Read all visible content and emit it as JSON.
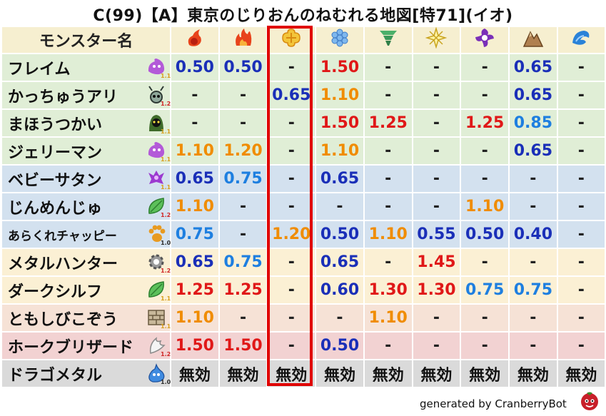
{
  "title": "C(99)【A】東京のじりおんのねむれる地図[特71](イオ)",
  "header": {
    "name_col": "モンスター名"
  },
  "elements": [
    {
      "icon": "fire-icon"
    },
    {
      "icon": "flame-icon"
    },
    {
      "icon": "wind-icon"
    },
    {
      "icon": "ice-icon"
    },
    {
      "icon": "tornado-icon"
    },
    {
      "icon": "light-icon"
    },
    {
      "icon": "dark-icon"
    },
    {
      "icon": "earth-icon"
    },
    {
      "icon": "water-icon"
    }
  ],
  "rows": [
    {
      "name": "フレイム",
      "level": "1.1",
      "icon": "purple-slime-icon",
      "bg": "#e0eed6",
      "small": false,
      "cells": [
        {
          "v": "0.50",
          "c": "blue"
        },
        {
          "v": "0.50",
          "c": "blue"
        },
        {
          "v": "-",
          "c": "dash"
        },
        {
          "v": "1.50",
          "c": "red"
        },
        {
          "v": "-",
          "c": "dash"
        },
        {
          "v": "-",
          "c": "dash"
        },
        {
          "v": "-",
          "c": "dash"
        },
        {
          "v": "0.65",
          "c": "blue"
        },
        {
          "v": "-",
          "c": "dash"
        }
      ]
    },
    {
      "name": "かっちゅうアリ",
      "level": "1.2",
      "icon": "ant-icon",
      "bg": "#e0eed6",
      "small": false,
      "cells": [
        {
          "v": "-",
          "c": "dash"
        },
        {
          "v": "-",
          "c": "dash"
        },
        {
          "v": "0.65",
          "c": "blue"
        },
        {
          "v": "1.10",
          "c": "orange"
        },
        {
          "v": "-",
          "c": "dash"
        },
        {
          "v": "-",
          "c": "dash"
        },
        {
          "v": "-",
          "c": "dash"
        },
        {
          "v": "0.65",
          "c": "blue"
        },
        {
          "v": "-",
          "c": "dash"
        }
      ]
    },
    {
      "name": "まほうつかい",
      "level": "1.1",
      "icon": "hooded-mage-icon",
      "bg": "#e0eed6",
      "small": false,
      "cells": [
        {
          "v": "-",
          "c": "dash"
        },
        {
          "v": "-",
          "c": "dash"
        },
        {
          "v": "-",
          "c": "dash"
        },
        {
          "v": "1.50",
          "c": "red"
        },
        {
          "v": "1.25",
          "c": "red"
        },
        {
          "v": "-",
          "c": "dash"
        },
        {
          "v": "1.25",
          "c": "red"
        },
        {
          "v": "0.85",
          "c": "lblue"
        },
        {
          "v": "-",
          "c": "dash"
        }
      ]
    },
    {
      "name": "ジェリーマン",
      "level": "1.1",
      "icon": "purple-slime-icon",
      "bg": "#e0eed6",
      "small": false,
      "cells": [
        {
          "v": "1.10",
          "c": "orange"
        },
        {
          "v": "1.20",
          "c": "orange"
        },
        {
          "v": "-",
          "c": "dash"
        },
        {
          "v": "1.10",
          "c": "orange"
        },
        {
          "v": "-",
          "c": "dash"
        },
        {
          "v": "-",
          "c": "dash"
        },
        {
          "v": "-",
          "c": "dash"
        },
        {
          "v": "0.65",
          "c": "blue"
        },
        {
          "v": "-",
          "c": "dash"
        }
      ]
    },
    {
      "name": "ベビーサタン",
      "level": "1.1",
      "icon": "demon-icon",
      "bg": "#d3e1ef",
      "small": false,
      "cells": [
        {
          "v": "0.65",
          "c": "blue"
        },
        {
          "v": "0.75",
          "c": "lblue"
        },
        {
          "v": "-",
          "c": "dash"
        },
        {
          "v": "0.65",
          "c": "blue"
        },
        {
          "v": "-",
          "c": "dash"
        },
        {
          "v": "-",
          "c": "dash"
        },
        {
          "v": "-",
          "c": "dash"
        },
        {
          "v": "-",
          "c": "dash"
        },
        {
          "v": "-",
          "c": "dash"
        }
      ]
    },
    {
      "name": "じんめんじゅ",
      "level": "1.2",
      "icon": "leaf-icon",
      "bg": "#d3e1ef",
      "small": false,
      "cells": [
        {
          "v": "1.10",
          "c": "orange"
        },
        {
          "v": "-",
          "c": "dash"
        },
        {
          "v": "-",
          "c": "dash"
        },
        {
          "v": "-",
          "c": "dash"
        },
        {
          "v": "-",
          "c": "dash"
        },
        {
          "v": "-",
          "c": "dash"
        },
        {
          "v": "1.10",
          "c": "orange"
        },
        {
          "v": "-",
          "c": "dash"
        },
        {
          "v": "-",
          "c": "dash"
        }
      ]
    },
    {
      "name": "あらくれチャッピー",
      "level": "1.0",
      "icon": "paw-icon",
      "bg": "#d3e1ef",
      "small": true,
      "cells": [
        {
          "v": "0.75",
          "c": "lblue"
        },
        {
          "v": "-",
          "c": "dash"
        },
        {
          "v": "1.20",
          "c": "orange"
        },
        {
          "v": "0.50",
          "c": "blue"
        },
        {
          "v": "1.10",
          "c": "orange"
        },
        {
          "v": "0.55",
          "c": "blue"
        },
        {
          "v": "0.50",
          "c": "blue"
        },
        {
          "v": "0.40",
          "c": "blue"
        },
        {
          "v": "-",
          "c": "dash"
        }
      ]
    },
    {
      "name": "メタルハンター",
      "level": "1.2",
      "icon": "gear-icon",
      "bg": "#fbf0d4",
      "small": false,
      "cells": [
        {
          "v": "0.65",
          "c": "blue"
        },
        {
          "v": "0.75",
          "c": "lblue"
        },
        {
          "v": "-",
          "c": "dash"
        },
        {
          "v": "0.65",
          "c": "blue"
        },
        {
          "v": "-",
          "c": "dash"
        },
        {
          "v": "1.45",
          "c": "red"
        },
        {
          "v": "-",
          "c": "dash"
        },
        {
          "v": "-",
          "c": "dash"
        },
        {
          "v": "-",
          "c": "dash"
        }
      ]
    },
    {
      "name": "ダークシルフ",
      "level": "1.1",
      "icon": "leaf-icon",
      "bg": "#fbf0d4",
      "small": false,
      "cells": [
        {
          "v": "1.25",
          "c": "red"
        },
        {
          "v": "1.25",
          "c": "red"
        },
        {
          "v": "-",
          "c": "dash"
        },
        {
          "v": "0.60",
          "c": "blue"
        },
        {
          "v": "1.30",
          "c": "red"
        },
        {
          "v": "1.30",
          "c": "red"
        },
        {
          "v": "0.75",
          "c": "lblue"
        },
        {
          "v": "0.75",
          "c": "lblue"
        },
        {
          "v": "-",
          "c": "dash"
        }
      ]
    },
    {
      "name": "ともしびこぞう",
      "level": "1.1",
      "icon": "brick-icon",
      "bg": "#f6e2d6",
      "small": false,
      "cells": [
        {
          "v": "1.10",
          "c": "orange"
        },
        {
          "v": "-",
          "c": "dash"
        },
        {
          "v": "-",
          "c": "dash"
        },
        {
          "v": "-",
          "c": "dash"
        },
        {
          "v": "1.10",
          "c": "orange"
        },
        {
          "v": "-",
          "c": "dash"
        },
        {
          "v": "-",
          "c": "dash"
        },
        {
          "v": "-",
          "c": "dash"
        },
        {
          "v": "-",
          "c": "dash"
        }
      ]
    },
    {
      "name": "ホークブリザード",
      "level": "1.2",
      "icon": "wing-icon",
      "bg": "#f2d2d2",
      "small": false,
      "cells": [
        {
          "v": "1.50",
          "c": "red"
        },
        {
          "v": "1.50",
          "c": "red"
        },
        {
          "v": "-",
          "c": "dash"
        },
        {
          "v": "0.50",
          "c": "blue"
        },
        {
          "v": "-",
          "c": "dash"
        },
        {
          "v": "-",
          "c": "dash"
        },
        {
          "v": "-",
          "c": "dash"
        },
        {
          "v": "-",
          "c": "dash"
        },
        {
          "v": "-",
          "c": "dash"
        }
      ]
    },
    {
      "name": "ドラゴメタル",
      "level": "1.0",
      "icon": "metal-slime-icon",
      "bg": "#dadada",
      "small": false,
      "cells": [
        {
          "v": "無効",
          "c": "bk"
        },
        {
          "v": "無効",
          "c": "bk"
        },
        {
          "v": "無効",
          "c": "bk"
        },
        {
          "v": "無効",
          "c": "bk"
        },
        {
          "v": "無効",
          "c": "bk"
        },
        {
          "v": "無効",
          "c": "bk"
        },
        {
          "v": "無効",
          "c": "bk"
        },
        {
          "v": "無効",
          "c": "bk"
        },
        {
          "v": "無効",
          "c": "bk"
        }
      ]
    }
  ],
  "footer": {
    "text": "generated by CranberryBot"
  },
  "colors": {
    "header_bg": "#f6efd0",
    "highlight": "#e00000"
  }
}
